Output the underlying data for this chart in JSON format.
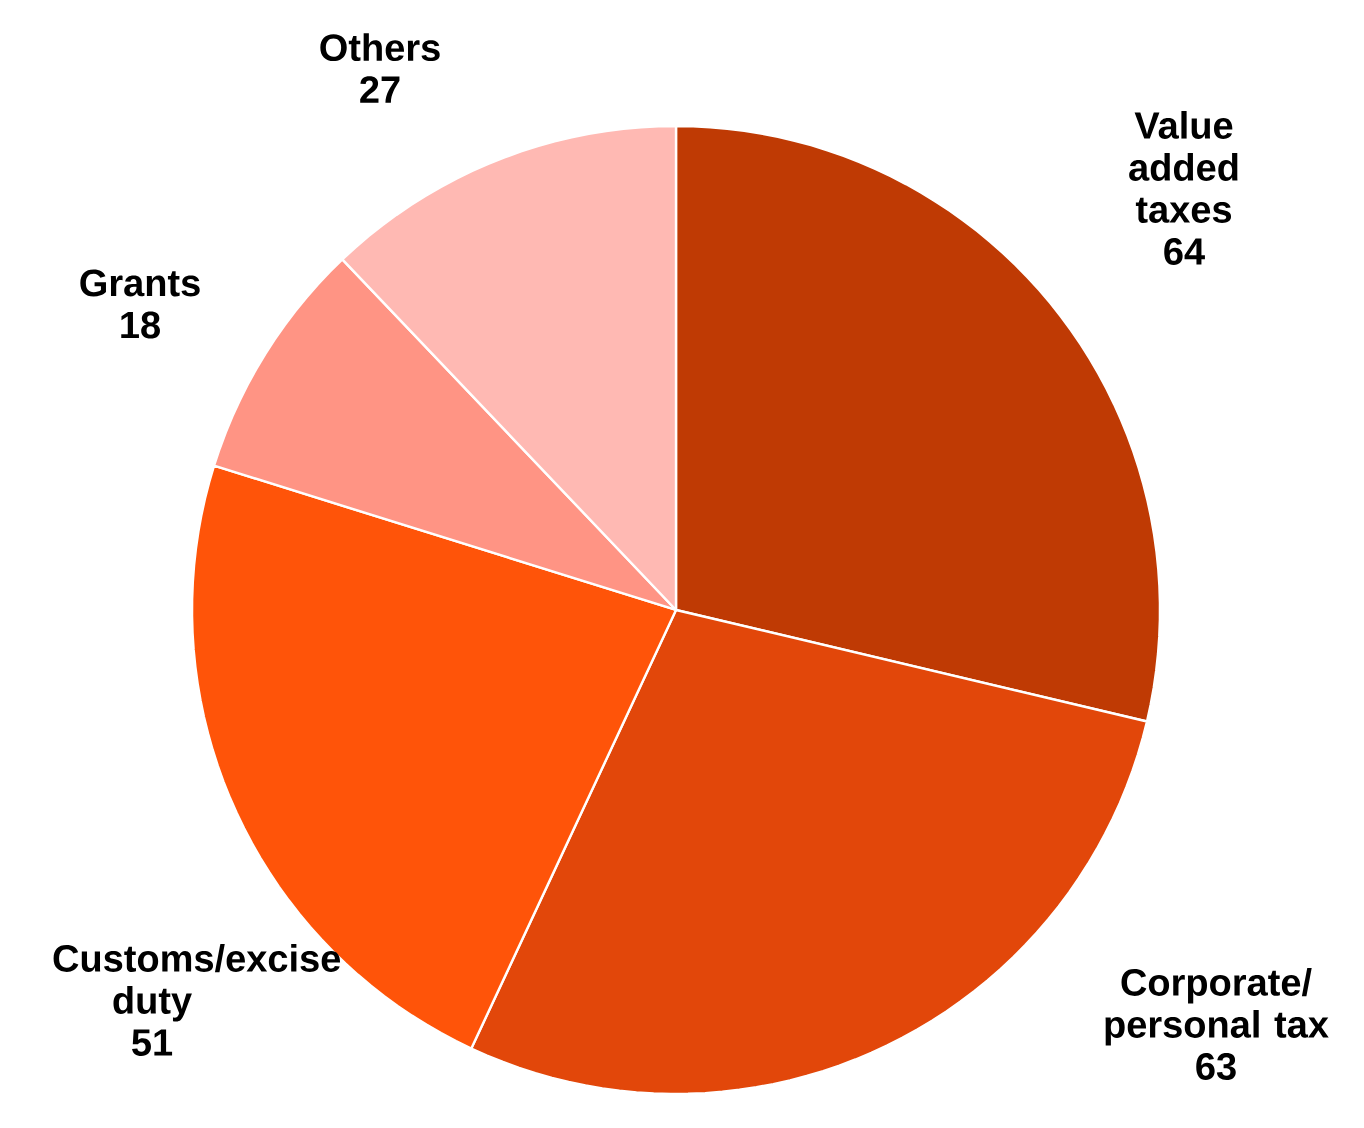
{
  "chart_data": {
    "type": "pie",
    "categories": [
      "Value added taxes",
      "Corporate/ personal tax",
      "Customs/excise duty",
      "Grants",
      "Others"
    ],
    "values": [
      64,
      63,
      51,
      18,
      27
    ],
    "colors": [
      "#bf3a04",
      "#e2470a",
      "#ff5409",
      "#ff9484",
      "#ffb9b3"
    ],
    "data_labels": true
  }
}
